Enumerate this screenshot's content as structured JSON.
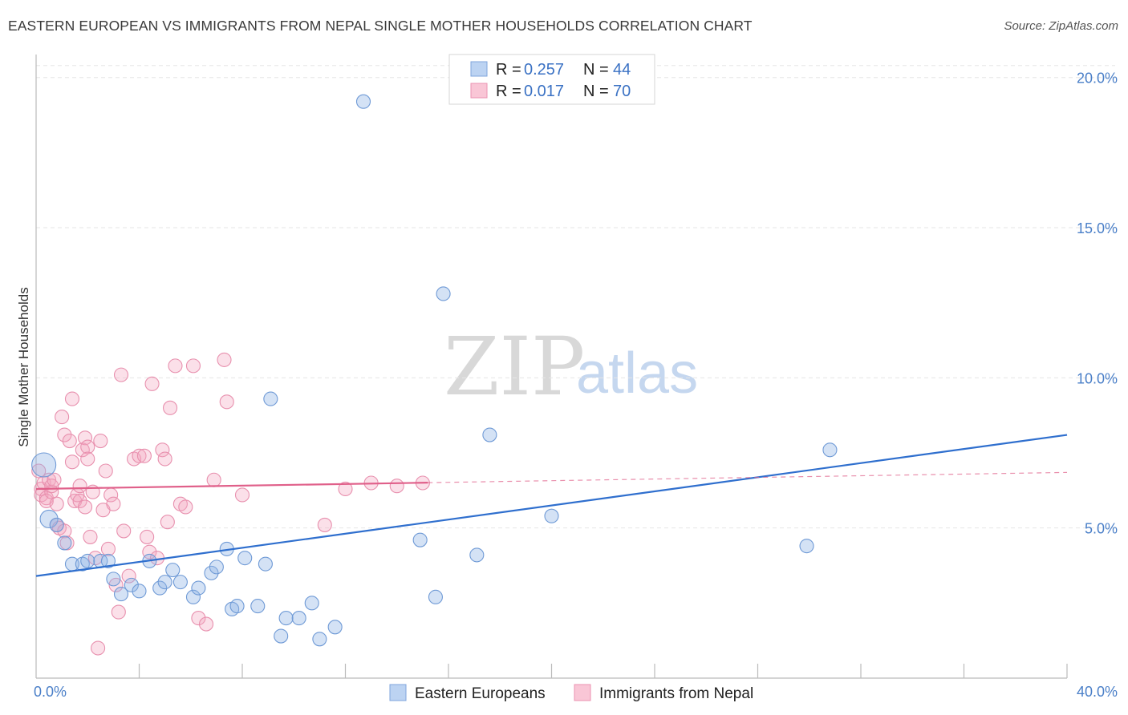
{
  "title": "EASTERN EUROPEAN VS IMMIGRANTS FROM NEPAL SINGLE MOTHER HOUSEHOLDS CORRELATION CHART",
  "source": "Source: ZipAtlas.com",
  "watermark": {
    "zip": "ZIP",
    "atlas": "atlas"
  },
  "legend": {
    "rows": [
      {
        "r_label": "R = ",
        "r_value": "0.257",
        "n_label": "N = ",
        "n_value": "44"
      },
      {
        "r_label": "R = ",
        "r_value": "0.017",
        "n_label": "N = ",
        "n_value": "70"
      }
    ]
  },
  "chart_data": {
    "type": "scatter",
    "title": "EASTERN EUROPEAN VS IMMIGRANTS FROM NEPAL SINGLE MOTHER HOUSEHOLDS CORRELATION CHART",
    "xlabel": "",
    "ylabel": "Single Mother Households",
    "xlim": [
      0,
      40
    ],
    "ylim": [
      0,
      20.5
    ],
    "x_tick_labels": [
      "0.0%",
      "40.0%"
    ],
    "y_ticks": [
      5,
      10,
      15,
      20
    ],
    "y_tick_labels": [
      "5.0%",
      "10.0%",
      "15.0%",
      "20.0%"
    ],
    "grid": true,
    "legend_position": "top-center",
    "colors": {
      "eastern": "#8fb4e6",
      "eastern_line": "#2f6fce",
      "nepal": "#f4a6bf",
      "nepal_line": "#e0608a"
    },
    "series": [
      {
        "name": "Eastern Europeans",
        "color": "#8fb4e6",
        "r": 0.257,
        "n": 44,
        "trend": {
          "x": [
            0,
            40
          ],
          "y": [
            3.4,
            8.1
          ],
          "dashed_from": null
        },
        "points": [
          [
            0.3,
            7.1
          ],
          [
            0.5,
            5.3
          ],
          [
            0.8,
            5.1
          ],
          [
            1.1,
            4.5
          ],
          [
            1.4,
            3.8
          ],
          [
            1.8,
            3.8
          ],
          [
            2.0,
            3.9
          ],
          [
            2.5,
            3.9
          ],
          [
            2.8,
            3.9
          ],
          [
            3.0,
            3.3
          ],
          [
            3.3,
            2.8
          ],
          [
            3.7,
            3.1
          ],
          [
            4.0,
            2.9
          ],
          [
            4.4,
            3.9
          ],
          [
            4.8,
            3.0
          ],
          [
            5.0,
            3.2
          ],
          [
            5.3,
            3.6
          ],
          [
            5.6,
            3.2
          ],
          [
            6.1,
            2.7
          ],
          [
            6.3,
            3.0
          ],
          [
            6.8,
            3.5
          ],
          [
            7.0,
            3.7
          ],
          [
            7.4,
            4.3
          ],
          [
            7.6,
            2.3
          ],
          [
            7.8,
            2.4
          ],
          [
            8.1,
            4.0
          ],
          [
            8.6,
            2.4
          ],
          [
            8.9,
            3.8
          ],
          [
            9.1,
            9.3
          ],
          [
            9.5,
            1.4
          ],
          [
            9.7,
            2.0
          ],
          [
            10.2,
            2.0
          ],
          [
            10.7,
            2.5
          ],
          [
            11.0,
            1.3
          ],
          [
            11.6,
            1.7
          ],
          [
            12.7,
            19.2
          ],
          [
            14.9,
            4.6
          ],
          [
            15.5,
            2.7
          ],
          [
            15.8,
            12.8
          ],
          [
            17.1,
            4.1
          ],
          [
            17.6,
            8.1
          ],
          [
            20.0,
            5.4
          ],
          [
            29.9,
            4.4
          ],
          [
            30.8,
            7.6
          ]
        ]
      },
      {
        "name": "Immigrants from Nepal",
        "color": "#f4a6bf",
        "r": 0.017,
        "n": 70,
        "trend": {
          "x": [
            0,
            40
          ],
          "y": [
            6.3,
            6.85
          ],
          "dashed_from": 15.2
        },
        "points": [
          [
            0.1,
            6.9
          ],
          [
            0.2,
            6.3
          ],
          [
            0.2,
            6.1
          ],
          [
            0.3,
            6.5
          ],
          [
            0.4,
            6.0
          ],
          [
            0.4,
            5.9
          ],
          [
            0.5,
            6.6
          ],
          [
            0.6,
            6.2
          ],
          [
            0.6,
            6.4
          ],
          [
            0.7,
            6.6
          ],
          [
            0.8,
            5.1
          ],
          [
            0.8,
            5.8
          ],
          [
            0.9,
            5.0
          ],
          [
            1.0,
            8.7
          ],
          [
            1.1,
            4.9
          ],
          [
            1.1,
            8.1
          ],
          [
            1.2,
            4.5
          ],
          [
            1.3,
            7.9
          ],
          [
            1.4,
            9.3
          ],
          [
            1.4,
            7.2
          ],
          [
            1.5,
            5.9
          ],
          [
            1.6,
            6.1
          ],
          [
            1.7,
            6.4
          ],
          [
            1.7,
            5.9
          ],
          [
            1.8,
            7.6
          ],
          [
            1.9,
            8.0
          ],
          [
            1.9,
            5.7
          ],
          [
            2.0,
            7.7
          ],
          [
            2.0,
            7.3
          ],
          [
            2.1,
            4.7
          ],
          [
            2.2,
            6.2
          ],
          [
            2.3,
            4.0
          ],
          [
            2.4,
            1.0
          ],
          [
            2.5,
            7.9
          ],
          [
            2.6,
            5.6
          ],
          [
            2.7,
            6.9
          ],
          [
            2.8,
            4.3
          ],
          [
            2.9,
            6.1
          ],
          [
            3.0,
            5.8
          ],
          [
            3.1,
            3.1
          ],
          [
            3.2,
            2.2
          ],
          [
            3.3,
            10.1
          ],
          [
            3.4,
            4.9
          ],
          [
            3.6,
            3.4
          ],
          [
            3.8,
            7.3
          ],
          [
            4.0,
            7.4
          ],
          [
            4.2,
            7.4
          ],
          [
            4.3,
            4.7
          ],
          [
            4.4,
            4.2
          ],
          [
            4.5,
            9.8
          ],
          [
            4.7,
            4.0
          ],
          [
            4.9,
            7.6
          ],
          [
            5.0,
            7.3
          ],
          [
            5.1,
            5.2
          ],
          [
            5.2,
            9.0
          ],
          [
            5.4,
            10.4
          ],
          [
            5.6,
            5.8
          ],
          [
            5.8,
            5.7
          ],
          [
            6.1,
            10.4
          ],
          [
            6.3,
            2.0
          ],
          [
            6.6,
            1.8
          ],
          [
            6.9,
            6.6
          ],
          [
            7.3,
            10.6
          ],
          [
            7.4,
            9.2
          ],
          [
            8.0,
            6.1
          ],
          [
            11.2,
            5.1
          ],
          [
            12.0,
            6.3
          ],
          [
            13.0,
            6.5
          ],
          [
            14.0,
            6.4
          ],
          [
            15.0,
            6.5
          ]
        ]
      }
    ]
  }
}
